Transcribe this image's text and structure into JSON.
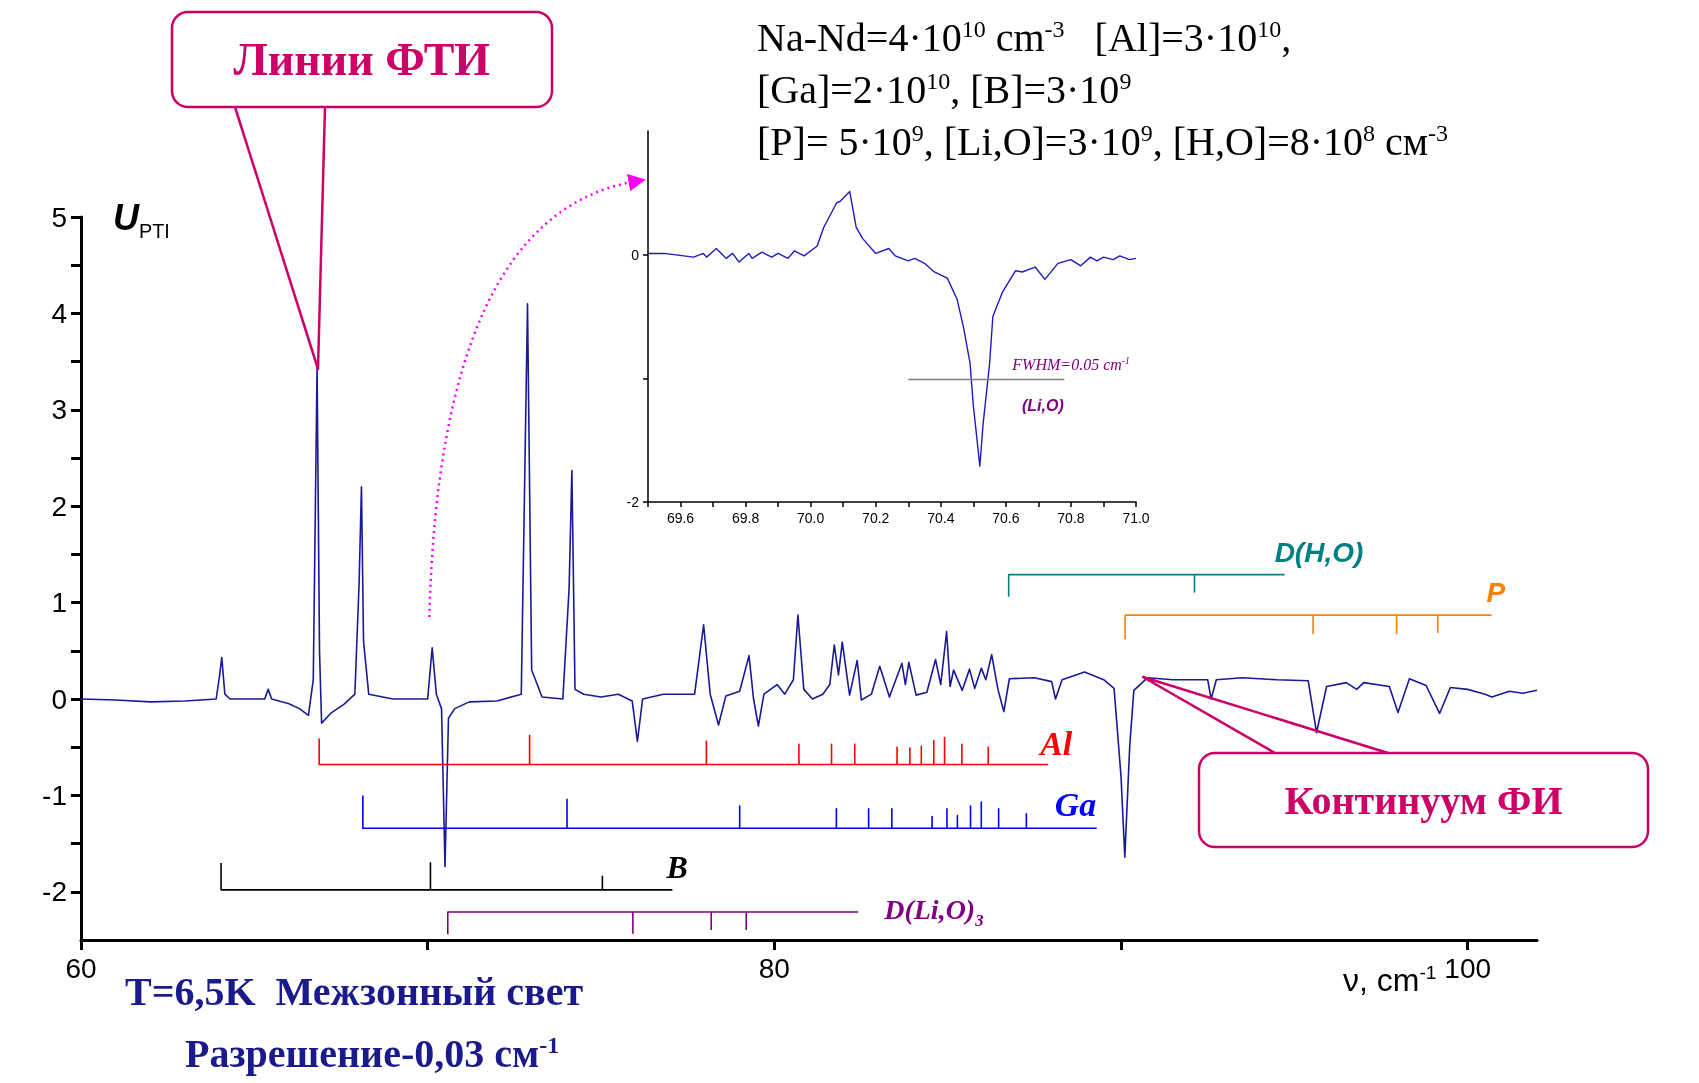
{
  "chart_data": [
    {
      "type": "line",
      "xlabel": "ν, cm$^{-1}$",
      "ylabel": "U$_{PTI}$",
      "xlim": [
        60,
        102
      ],
      "xticks": [
        60,
        {
          "value": 70,
          "label": null
        },
        80,
        {
          "value": 90,
          "label": null
        },
        100
      ],
      "ylim": [
        -2.5,
        5
      ],
      "yticks": [
        -2,
        {
          "value": -1.5,
          "label": null
        },
        -1,
        {
          "value": -0.5,
          "label": null
        },
        0,
        {
          "value": 0.5,
          "label": null
        },
        1,
        {
          "value": 1.5,
          "label": null
        },
        2,
        {
          "value": 2.5,
          "label": null
        },
        3,
        {
          "value": 3.5,
          "label": null
        },
        4,
        {
          "value": 4.5,
          "label": null
        },
        5
      ],
      "annotations": [
        "Na-Nd=4·10$^{10}$ cm$^{-3}$   [Al]=3·10$^{10}$,",
        "[Ga]=2·10$^{10}$, [B]=3·10$^{9}$",
        "[P]= 5·10$^{9}$, [Li,O]=3·10$^{9}$, [H,O]=8·10$^{8}$ см$^{-3}$",
        "Линии ФТИ",
        "Континуум ФИ",
        "T=6,5K  Межзонный свет",
        "Разрешение-0,03 см$^{-1}$"
      ],
      "series": [
        {
          "color": "#1a1a99",
          "x": [
            60,
            61,
            62,
            63,
            63.9,
            64.0,
            64.06,
            64.15,
            64.3,
            65.3,
            65.4,
            65.5,
            66.0,
            66.3,
            66.56,
            66.7,
            66.81,
            66.88,
            66.94,
            67.2,
            67.6,
            67.9,
            68.02,
            68.09,
            68.15,
            68.3,
            69.0,
            70.0,
            70.13,
            70.25,
            70.4,
            70.5,
            70.6,
            70.78,
            71.2,
            72.0,
            72.7,
            72.88,
            73.0,
            73.3,
            73.9,
            74.08,
            74.16,
            74.25,
            74.5,
            75.0,
            75.5,
            75.9,
            76.05,
            76.2,
            76.8,
            77.7,
            77.96,
            78.15,
            78.39,
            78.6,
            79.0,
            79.27,
            79.4,
            79.54,
            79.7,
            80.08,
            80.3,
            80.55,
            80.68,
            80.85,
            81.1,
            81.4,
            81.6,
            81.73,
            81.85,
            81.96,
            82.17,
            82.39,
            82.51,
            82.8,
            83.04,
            83.32,
            83.68,
            83.78,
            83.88,
            84.09,
            84.4,
            84.65,
            84.8,
            84.97,
            85.07,
            85.17,
            85.42,
            85.63,
            85.78,
            85.97,
            86.1,
            86.27,
            86.45,
            86.62,
            86.78,
            87.5,
            88.0,
            88.11,
            88.3,
            88.95,
            89.5,
            89.8,
            90.0,
            90.11,
            90.25,
            90.37,
            90.76,
            91.5,
            92.5,
            92.6,
            92.75,
            93.5,
            94.5,
            95.4,
            95.64,
            95.93,
            96.5,
            96.8,
            97.0,
            97.74,
            97.99,
            98.32,
            98.8,
            99.19,
            99.5,
            100.0,
            100.5,
            100.7,
            101.2,
            101.6,
            102.0
          ],
          "values": [
            0,
            -0.01,
            -0.03,
            -0.02,
            0.0,
            0.25,
            0.43,
            0.05,
            0.0,
            0.0,
            0.1,
            0.0,
            -0.05,
            -0.1,
            -0.17,
            0.2,
            3.45,
            0.5,
            -0.25,
            -0.15,
            -0.05,
            0.05,
            1.18,
            2.2,
            0.6,
            0.05,
            0.0,
            0.0,
            0.53,
            0.05,
            -0.1,
            -1.74,
            -0.2,
            -0.1,
            -0.03,
            -0.02,
            0.05,
            4.1,
            0.3,
            0.02,
            0.0,
            1.15,
            2.37,
            0.1,
            0.05,
            0.02,
            0.05,
            -0.02,
            -0.44,
            0.0,
            0.05,
            0.05,
            0.77,
            0.05,
            -0.27,
            0.03,
            0.08,
            0.45,
            0.0,
            -0.28,
            0.05,
            0.15,
            0.05,
            0.2,
            0.87,
            0.1,
            0.0,
            0.05,
            0.15,
            0.56,
            0.25,
            0.59,
            0.04,
            0.4,
            -0.01,
            0.05,
            0.34,
            0.02,
            0.37,
            0.15,
            0.38,
            0.04,
            0.07,
            0.41,
            0.15,
            0.7,
            0.13,
            0.3,
            0.09,
            0.31,
            0.11,
            0.32,
            0.2,
            0.46,
            0.1,
            -0.13,
            0.21,
            0.22,
            0.18,
            0.0,
            0.2,
            0.28,
            0.2,
            0.11,
            -0.8,
            -1.64,
            -0.5,
            0.09,
            0.22,
            0.2,
            0.2,
            0.0,
            0.2,
            0.22,
            0.2,
            0.19,
            -0.35,
            0.13,
            0.17,
            0.1,
            0.17,
            0.13,
            -0.14,
            0.21,
            0.14,
            -0.15,
            0.12,
            0.1,
            0.05,
            0.02,
            0.08,
            0.06,
            0.09
          ]
        },
        {
          "name": "Al",
          "color": "#ff0000",
          "x": [
            66.87,
            66.87,
            72.94,
            72.94,
            72.94,
            78.04,
            78.04,
            78.04,
            80.71,
            80.71,
            80.71,
            81.65,
            81.65,
            81.65,
            82.32,
            82.32,
            82.32,
            83.54,
            83.54,
            83.54,
            83.91,
            83.91,
            83.91,
            84.24,
            84.24,
            84.24,
            84.6,
            84.6,
            84.6,
            84.91,
            84.91,
            84.91,
            85.41,
            85.41,
            85.41,
            86.17,
            86.17,
            86.17,
            87.9
          ],
          "values": [
            -0.41,
            -0.68,
            -0.68,
            -0.38,
            -0.68,
            -0.68,
            -0.44,
            -0.68,
            -0.68,
            -0.47,
            -0.68,
            -0.68,
            -0.47,
            -0.68,
            -0.68,
            -0.47,
            -0.68,
            -0.68,
            -0.5,
            -0.68,
            -0.68,
            -0.51,
            -0.68,
            -0.68,
            -0.49,
            -0.68,
            -0.68,
            -0.43,
            -0.68,
            -0.68,
            -0.4,
            -0.68,
            -0.68,
            -0.47,
            -0.68,
            -0.68,
            -0.5,
            -0.68,
            -0.68
          ]
        },
        {
          "name": "Ga",
          "color": "#0000ff",
          "x": [
            68.13,
            68.13,
            74.02,
            74.02,
            74.02,
            79.0,
            79.0,
            79.0,
            81.79,
            81.79,
            81.79,
            82.72,
            82.72,
            82.72,
            83.39,
            83.39,
            83.39,
            84.55,
            84.55,
            84.55,
            84.98,
            84.98,
            84.98,
            85.28,
            85.28,
            85.28,
            85.66,
            85.66,
            85.66,
            85.97,
            85.97,
            85.97,
            86.47,
            86.47,
            86.47,
            87.27,
            87.27,
            87.27,
            89.3
          ],
          "values": [
            -1.0,
            -1.34,
            -1.34,
            -1.04,
            -1.34,
            -1.34,
            -1.11,
            -1.34,
            -1.34,
            -1.14,
            -1.34,
            -1.34,
            -1.14,
            -1.34,
            -1.34,
            -1.14,
            -1.34,
            -1.34,
            -1.22,
            -1.34,
            -1.34,
            -1.14,
            -1.34,
            -1.34,
            -1.21,
            -1.34,
            -1.34,
            -1.11,
            -1.34,
            -1.34,
            -1.07,
            -1.34,
            -1.34,
            -1.14,
            -1.34,
            -1.34,
            -1.19,
            -1.34,
            -1.34
          ]
        },
        {
          "name": "B",
          "color": "#000000",
          "x": [
            64.04,
            64.04,
            70.08,
            70.08,
            70.08,
            75.04,
            75.04,
            75.04,
            77.06
          ],
          "values": [
            -1.7,
            -1.98,
            -1.98,
            -1.7,
            -1.98,
            -1.98,
            -1.84,
            -1.98,
            -1.98
          ]
        },
        {
          "name": "D(Li,O)$_{3}$",
          "color": "#800080",
          "x": [
            70.58,
            70.58,
            75.92,
            75.92,
            75.92,
            78.18,
            78.18,
            78.18,
            79.19,
            79.19,
            79.19,
            82.42
          ],
          "values": [
            -2.44,
            -2.21,
            -2.21,
            -2.43,
            -2.21,
            -2.21,
            -2.39,
            -2.21,
            -2.21,
            -2.39,
            -2.21,
            -2.21
          ]
        },
        {
          "name": "D(H,O)",
          "color": "#008080",
          "x": [
            86.76,
            86.76,
            92.12,
            92.12,
            92.12,
            94.72
          ],
          "values": [
            1.06,
            1.29,
            1.29,
            1.11,
            1.29,
            1.29
          ]
        },
        {
          "name": "P",
          "color": "#ff8000",
          "x": [
            90.12,
            90.12,
            95.54,
            95.54,
            95.54,
            97.95,
            97.95,
            97.95,
            99.14,
            99.14,
            99.14,
            100.69
          ],
          "values": [
            0.62,
            0.87,
            0.87,
            0.68,
            0.87,
            0.87,
            0.68,
            0.87,
            0.87,
            0.69,
            0.87,
            0.87
          ]
        }
      ]
    },
    {
      "type": "line",
      "xlim": [
        69.5,
        71.0
      ],
      "xticks": [
        {
          "value": 69.5,
          "label": null
        },
        {
          "value": 69.6,
          "label": "69.6"
        },
        {
          "value": 69.7,
          "label": null
        },
        {
          "value": 69.8,
          "label": "69.8"
        },
        {
          "value": 69.9,
          "label": null
        },
        {
          "value": 70.0,
          "label": "70.0"
        },
        {
          "value": 70.1,
          "label": null
        },
        {
          "value": 70.2,
          "label": "70.2"
        },
        {
          "value": 70.3,
          "label": null
        },
        {
          "value": 70.4,
          "label": "70.4"
        },
        {
          "value": 70.5,
          "label": null
        },
        {
          "value": 70.6,
          "label": "70.6"
        },
        {
          "value": 70.7,
          "label": null
        },
        {
          "value": 70.8,
          "label": "70.8"
        },
        {
          "value": 70.9,
          "label": null
        },
        {
          "value": 71.0,
          "label": "71.0"
        }
      ],
      "ylim": [
        -2,
        1
      ],
      "yticks": [
        -2,
        {
          "value": -1,
          "label": null
        },
        0
      ],
      "annotations": [
        {
          "text": "FWHM=0.05 cm$^{-1}$",
          "x": 70.54,
          "y": -1.01
        },
        "(Li,O)"
      ],
      "series": [
        {
          "color": "#1c1cc0",
          "x": [
            69.5,
            69.55,
            69.64,
            69.67,
            69.68,
            69.71,
            69.74,
            69.76,
            69.78,
            69.81,
            69.82,
            69.85,
            69.88,
            69.9,
            69.93,
            69.95,
            69.98,
            70.02,
            70.04,
            70.08,
            70.09,
            70.12,
            70.14,
            70.16,
            70.2,
            70.24,
            70.26,
            70.3,
            70.32,
            70.35,
            70.38,
            70.42,
            70.45,
            70.47,
            70.49,
            70.5,
            70.52,
            70.53,
            70.55,
            70.56,
            70.59,
            70.63,
            70.65,
            70.69,
            70.72,
            70.76,
            70.8,
            70.83,
            70.86,
            70.88,
            70.9,
            70.93,
            70.95,
            70.98,
            71.0
          ],
          "values": [
            0.01,
            0.01,
            -0.02,
            0.01,
            -0.02,
            0.05,
            -0.03,
            0.01,
            -0.06,
            0.01,
            -0.03,
            0.02,
            -0.02,
            0.01,
            -0.03,
            0.03,
            -0.01,
            0.07,
            0.22,
            0.42,
            0.43,
            0.51,
            0.22,
            0.13,
            0.01,
            0.05,
            -0.01,
            -0.05,
            -0.03,
            -0.07,
            -0.14,
            -0.19,
            -0.36,
            -0.59,
            -0.88,
            -1.22,
            -1.71,
            -1.37,
            -0.88,
            -0.5,
            -0.3,
            -0.13,
            -0.14,
            -0.1,
            -0.2,
            -0.07,
            -0.04,
            -0.09,
            -0.02,
            -0.05,
            -0.02,
            -0.04,
            -0.01,
            -0.04,
            -0.03
          ]
        },
        {
          "color": "#808080",
          "x": [
            70.3,
            70.78
          ],
          "values": [
            -1.01,
            -1.01
          ]
        }
      ]
    }
  ]
}
